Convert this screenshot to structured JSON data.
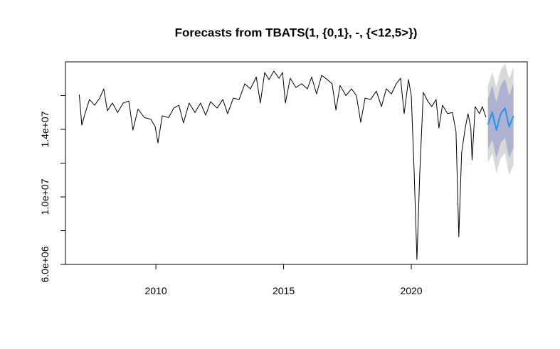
{
  "chart_data": {
    "type": "line",
    "title": "Forecasts from TBATS(1, {0,1}, -, {<12,5>})",
    "xlim": [
      2006.46,
      2024.54
    ],
    "ylim": [
      6000000,
      18000000
    ],
    "xticks": [
      2010,
      2015,
      2020
    ],
    "yticks": [
      {
        "value": 6000000,
        "label": "6.0e+06"
      },
      {
        "value": 8000000,
        "label": null
      },
      {
        "value": 10000000,
        "label": "1.0e+07"
      },
      {
        "value": 12000000,
        "label": null
      },
      {
        "value": 14000000,
        "label": "1.4e+07"
      },
      {
        "value": 16000000,
        "label": null
      }
    ],
    "x": [
      2007.0,
      2007.1,
      2007.24,
      2007.4,
      2007.6,
      2007.8,
      2007.96,
      2008.1,
      2008.3,
      2008.5,
      2008.72,
      2008.94,
      2009.1,
      2009.3,
      2009.55,
      2009.8,
      2009.97,
      2010.08,
      2010.25,
      2010.5,
      2010.7,
      2010.9,
      2011.08,
      2011.3,
      2011.53,
      2011.75,
      2011.95,
      2012.14,
      2012.4,
      2012.62,
      2012.81,
      2013.03,
      2013.26,
      2013.48,
      2013.7,
      2013.93,
      2014.09,
      2014.26,
      2014.43,
      2014.62,
      2014.82,
      2014.96,
      2015.07,
      2015.26,
      2015.48,
      2015.71,
      2015.93,
      2016.1,
      2016.29,
      2016.49,
      2016.71,
      2016.9,
      2017.05,
      2017.21,
      2017.44,
      2017.66,
      2017.85,
      2018.02,
      2018.19,
      2018.41,
      2018.63,
      2018.83,
      2019.02,
      2019.22,
      2019.41,
      2019.58,
      2019.72,
      2019.89,
      2020.0,
      2020.11,
      2020.22,
      2020.33,
      2020.47,
      2020.64,
      2020.8,
      2020.97,
      2021.08,
      2021.22,
      2021.42,
      2021.61,
      2021.75,
      2021.86,
      2021.97,
      2022.11,
      2022.22,
      2022.33,
      2022.38,
      2022.5,
      2022.67,
      2022.78,
      2022.92
    ],
    "series": [
      {
        "color": "#000000",
        "values": [
          16060000,
          14250000,
          15000000,
          15770000,
          15430000,
          15850000,
          16400000,
          15100000,
          15560000,
          15000000,
          15560000,
          15680000,
          13960000,
          15200000,
          14700000,
          14600000,
          14170000,
          13200000,
          14800000,
          14700000,
          15260000,
          15430000,
          14380000,
          15560000,
          15000000,
          15560000,
          14840000,
          15640000,
          15260000,
          15770000,
          14930000,
          15850000,
          15770000,
          16700000,
          16400000,
          17100000,
          15560000,
          17370000,
          16950000,
          17450000,
          17030000,
          17370000,
          15560000,
          17030000,
          16480000,
          16700000,
          16400000,
          17100000,
          16100000,
          17200000,
          16950000,
          16700000,
          15140000,
          16600000,
          16000000,
          16400000,
          16000000,
          14420000,
          15850000,
          15770000,
          16270000,
          15350000,
          16400000,
          16100000,
          16700000,
          17030000,
          14930000,
          16950000,
          15980000,
          11560000,
          6290000,
          11350000,
          16190000,
          15680000,
          15350000,
          15770000,
          14080000,
          15430000,
          14930000,
          15000000,
          13870000,
          7640000,
          12610000,
          14080000,
          14930000,
          14080000,
          12190000,
          15350000,
          14930000,
          15350000,
          14720000
        ]
      }
    ],
    "forecast": {
      "x": [
        2023.0,
        2023.17,
        2023.33,
        2023.5,
        2023.67,
        2023.83,
        2024.0
      ],
      "color": "#2196f3",
      "color80": "#aeb2d0",
      "color95": "#d9d9d9",
      "mean": [
        14290000,
        15010000,
        13960000,
        14930000,
        15260000,
        14170000,
        14800000
      ],
      "lo80": [
        12800000,
        13400000,
        12300000,
        13200000,
        13500000,
        12300000,
        12900000
      ],
      "hi80": [
        15800000,
        16600000,
        15600000,
        16600000,
        17000000,
        16000000,
        16700000
      ],
      "lo95": [
        12000000,
        12600000,
        11400000,
        12300000,
        12600000,
        11300000,
        11900000
      ],
      "hi95": [
        16600000,
        17400000,
        16500000,
        17500000,
        17900000,
        17000000,
        17700000
      ]
    }
  }
}
